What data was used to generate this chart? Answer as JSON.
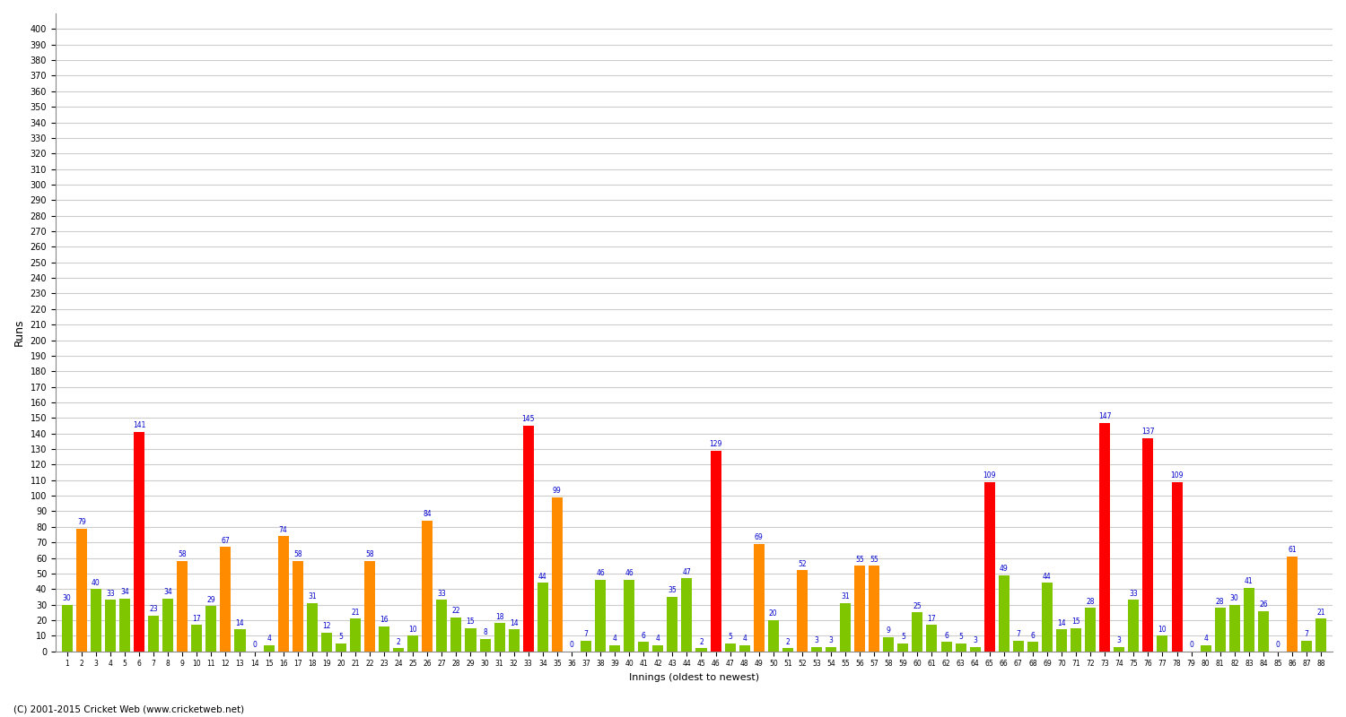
{
  "xlabel": "Innings (oldest to newest)",
  "ylabel": "Runs",
  "ylim": [
    0,
    410
  ],
  "yticks": [
    0,
    10,
    20,
    30,
    40,
    50,
    60,
    70,
    80,
    90,
    100,
    110,
    120,
    130,
    140,
    150,
    160,
    170,
    180,
    190,
    200,
    210,
    220,
    230,
    240,
    250,
    260,
    270,
    280,
    290,
    300,
    310,
    320,
    330,
    340,
    350,
    360,
    370,
    380,
    390,
    400
  ],
  "footer": "(C) 2001-2015 Cricket Web (www.cricketweb.net)",
  "innings_labels": [
    "1",
    "2",
    "3",
    "4",
    "5",
    "6",
    "7",
    "8",
    "9",
    "10",
    "11",
    "12",
    "13",
    "14",
    "15",
    "16",
    "17",
    "18",
    "19",
    "20",
    "21",
    "22",
    "23",
    "24",
    "25",
    "26",
    "27",
    "28",
    "29",
    "30",
    "31",
    "32",
    "33",
    "34",
    "35",
    "36",
    "37",
    "38",
    "39",
    "40",
    "41",
    "42",
    "43",
    "44",
    "45",
    "46",
    "47",
    "48",
    "49",
    "50",
    "51",
    "52",
    "53",
    "54",
    "55",
    "56",
    "57",
    "58",
    "59",
    "60",
    "61",
    "62",
    "63",
    "64",
    "65",
    "66",
    "67",
    "68",
    "69",
    "70",
    "71",
    "72",
    "73",
    "74",
    "75",
    "76",
    "77",
    "78",
    "79",
    "80",
    "81",
    "82",
    "83",
    "84",
    "85",
    "86",
    "87",
    "88"
  ],
  "scores": [
    30,
    79,
    40,
    33,
    34,
    141,
    23,
    34,
    58,
    17,
    29,
    67,
    14,
    0,
    4,
    74,
    58,
    31,
    12,
    5,
    21,
    58,
    16,
    2,
    10,
    84,
    33,
    22,
    15,
    8,
    18,
    14,
    145,
    44,
    99,
    0,
    7,
    46,
    4,
    46,
    6,
    4,
    35,
    47,
    2,
    129,
    5,
    4,
    69,
    20,
    2,
    52,
    3,
    3,
    31,
    55,
    55,
    9,
    5,
    25,
    17,
    6,
    5,
    3,
    109,
    49,
    7,
    6,
    44,
    14,
    15,
    28,
    147,
    3,
    33,
    137,
    10,
    109,
    0,
    4,
    28,
    30,
    41,
    26,
    0,
    61,
    7,
    21
  ],
  "bar_colors_map": {
    "century": "#ff0000",
    "fifty": "#ff8c00",
    "other": "#7fc600"
  },
  "background_color": "#ffffff",
  "grid_color": "#cccccc",
  "text_color": "#0000cc",
  "bar_width": 0.75
}
